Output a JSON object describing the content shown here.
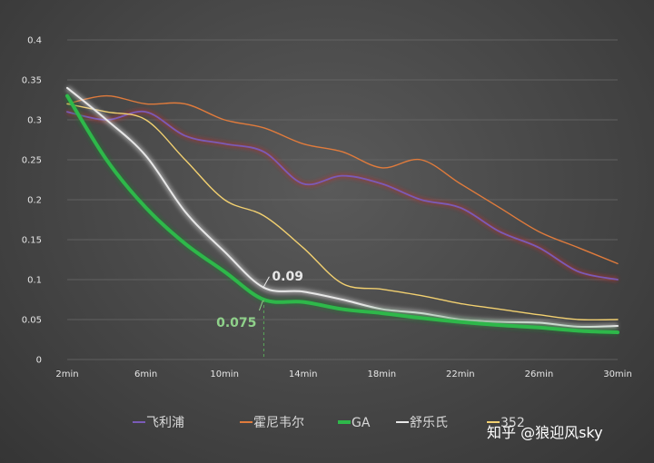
{
  "chart_data": {
    "type": "line",
    "title": "",
    "xlabel": "",
    "ylabel": "",
    "ylim": [
      0,
      0.4
    ],
    "y_ticks": [
      "0",
      "0.05",
      "0.1",
      "0.15",
      "0.2",
      "0.25",
      "0.3",
      "0.35",
      "0.4"
    ],
    "x_ticks": [
      "2min",
      "6min",
      "10min",
      "14min",
      "18min",
      "22min",
      "26min",
      "30min"
    ],
    "x": [
      2,
      4,
      6,
      8,
      10,
      12,
      14,
      16,
      18,
      20,
      22,
      24,
      26,
      28,
      30
    ],
    "grid": true,
    "legend_position": "bottom",
    "series": [
      {
        "name": "飞利浦",
        "color": "#7a5bb8",
        "values": [
          0.31,
          0.3,
          0.31,
          0.28,
          0.27,
          0.26,
          0.22,
          0.23,
          0.22,
          0.2,
          0.19,
          0.16,
          0.14,
          0.11,
          0.1
        ]
      },
      {
        "name": "霍尼韦尔",
        "color": "#e07b3c",
        "values": [
          0.32,
          0.33,
          0.32,
          0.32,
          0.3,
          0.29,
          0.27,
          0.26,
          0.24,
          0.25,
          0.22,
          0.19,
          0.16,
          0.14,
          0.12
        ]
      },
      {
        "name": "GA",
        "color": "#2eb84a",
        "values": [
          0.33,
          0.25,
          0.19,
          0.145,
          0.11,
          0.075,
          0.072,
          0.063,
          0.058,
          0.052,
          0.047,
          0.043,
          0.04,
          0.036,
          0.034
        ]
      },
      {
        "name": "舒乐氏",
        "color": "#e8e8e8",
        "values": [
          0.34,
          0.3,
          0.255,
          0.185,
          0.135,
          0.09,
          0.085,
          0.075,
          0.063,
          0.058,
          0.05,
          0.047,
          0.046,
          0.041,
          0.042
        ]
      },
      {
        "name": "352",
        "color": "#f2d070",
        "values": [
          0.32,
          0.31,
          0.3,
          0.25,
          0.2,
          0.18,
          0.14,
          0.095,
          0.088,
          0.08,
          0.07,
          0.063,
          0.056,
          0.05,
          0.05
        ]
      }
    ],
    "annotations": [
      {
        "text": "0.09",
        "series": "舒乐氏",
        "x": 12,
        "y": 0.09,
        "color": "#e8e8e8"
      },
      {
        "text": "0.075",
        "series": "GA",
        "x": 12,
        "y": 0.075,
        "color": "#8fd18a"
      }
    ]
  },
  "watermark": "知乎 @狼迎风sky"
}
